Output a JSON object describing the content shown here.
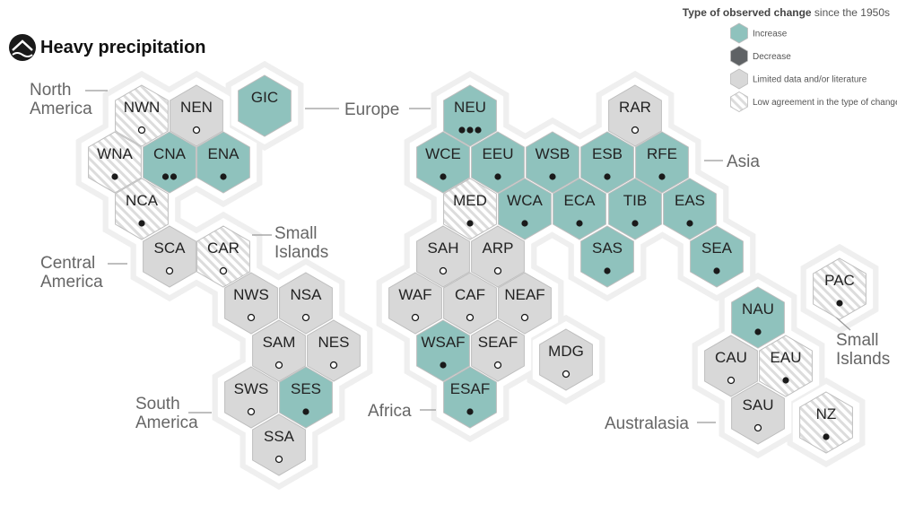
{
  "title": "Heavy precipitation",
  "legend": {
    "title_bold": "Type of observed change",
    "title_rest": " since the 1950s",
    "items": [
      {
        "key": "increase",
        "label": "Increase"
      },
      {
        "key": "decrease",
        "label": "Decrease"
      },
      {
        "key": "limited",
        "label": "Limited data and/or literature"
      },
      {
        "key": "low_agreement",
        "label": "Low agreement in the type of change"
      }
    ]
  },
  "colors": {
    "increase": "#8fc2bd",
    "decrease": "#5f6265",
    "limited": "#d8d8d8",
    "low_agreement_stripe": "#dcdcdc",
    "outline": "#ffffff",
    "halo": "#efefef",
    "marker": "#1a1a1a"
  },
  "region_labels": [
    {
      "id": "north-america",
      "lines": [
        "North",
        "America"
      ]
    },
    {
      "id": "europe",
      "lines": [
        "Europe"
      ]
    },
    {
      "id": "asia",
      "lines": [
        "Asia"
      ]
    },
    {
      "id": "small-islands-caribbean",
      "lines": [
        "Small",
        "Islands"
      ]
    },
    {
      "id": "central-america",
      "lines": [
        "Central",
        "America"
      ]
    },
    {
      "id": "south-america",
      "lines": [
        "South",
        "America"
      ]
    },
    {
      "id": "africa",
      "lines": [
        "Africa"
      ]
    },
    {
      "id": "australasia",
      "lines": [
        "Australasia"
      ]
    },
    {
      "id": "small-islands-pacific",
      "lines": [
        "Small",
        "Islands"
      ]
    }
  ],
  "regions": [
    {
      "code": "NWN",
      "type": "low_agreement",
      "confidence": 0
    },
    {
      "code": "NEN",
      "type": "limited",
      "confidence": 0
    },
    {
      "code": "GIC",
      "type": "increase",
      "confidence": null
    },
    {
      "code": "WNA",
      "type": "low_agreement",
      "confidence": 1
    },
    {
      "code": "CNA",
      "type": "increase",
      "confidence": 2
    },
    {
      "code": "ENA",
      "type": "increase",
      "confidence": 1
    },
    {
      "code": "NCA",
      "type": "low_agreement",
      "confidence": 1
    },
    {
      "code": "SCA",
      "type": "limited",
      "confidence": 0
    },
    {
      "code": "CAR",
      "type": "low_agreement",
      "confidence": 0
    },
    {
      "code": "NWS",
      "type": "limited",
      "confidence": 0
    },
    {
      "code": "NSA",
      "type": "limited",
      "confidence": 0
    },
    {
      "code": "SAM",
      "type": "limited",
      "confidence": 0
    },
    {
      "code": "NES",
      "type": "limited",
      "confidence": 0
    },
    {
      "code": "SWS",
      "type": "limited",
      "confidence": 0
    },
    {
      "code": "SES",
      "type": "increase",
      "confidence": 1
    },
    {
      "code": "SSA",
      "type": "limited",
      "confidence": 0
    },
    {
      "code": "NEU",
      "type": "increase",
      "confidence": 3
    },
    {
      "code": "RAR",
      "type": "limited",
      "confidence": 0
    },
    {
      "code": "WCE",
      "type": "increase",
      "confidence": 1
    },
    {
      "code": "EEU",
      "type": "increase",
      "confidence": 1
    },
    {
      "code": "WSB",
      "type": "increase",
      "confidence": 1
    },
    {
      "code": "ESB",
      "type": "increase",
      "confidence": 1
    },
    {
      "code": "RFE",
      "type": "increase",
      "confidence": 1
    },
    {
      "code": "MED",
      "type": "low_agreement",
      "confidence": 1
    },
    {
      "code": "WCA",
      "type": "increase",
      "confidence": 1
    },
    {
      "code": "ECA",
      "type": "increase",
      "confidence": 1
    },
    {
      "code": "TIB",
      "type": "increase",
      "confidence": 1
    },
    {
      "code": "EAS",
      "type": "increase",
      "confidence": 1
    },
    {
      "code": "SAH",
      "type": "limited",
      "confidence": 0
    },
    {
      "code": "ARP",
      "type": "limited",
      "confidence": 0
    },
    {
      "code": "SAS",
      "type": "increase",
      "confidence": 1
    },
    {
      "code": "SEA",
      "type": "increase",
      "confidence": 1
    },
    {
      "code": "WAF",
      "type": "limited",
      "confidence": 0
    },
    {
      "code": "CAF",
      "type": "limited",
      "confidence": 0
    },
    {
      "code": "NEAF",
      "type": "limited",
      "confidence": 0
    },
    {
      "code": "WSAF",
      "type": "increase",
      "confidence": 1
    },
    {
      "code": "SEAF",
      "type": "limited",
      "confidence": 0
    },
    {
      "code": "MDG",
      "type": "limited",
      "confidence": 0
    },
    {
      "code": "ESAF",
      "type": "increase",
      "confidence": 1
    },
    {
      "code": "PAC",
      "type": "low_agreement",
      "confidence": 1
    },
    {
      "code": "NAU",
      "type": "increase",
      "confidence": 1
    },
    {
      "code": "CAU",
      "type": "limited",
      "confidence": 0
    },
    {
      "code": "EAU",
      "type": "low_agreement",
      "confidence": 1
    },
    {
      "code": "SAU",
      "type": "limited",
      "confidence": 0
    },
    {
      "code": "NZ",
      "type": "low_agreement",
      "confidence": 1
    }
  ]
}
